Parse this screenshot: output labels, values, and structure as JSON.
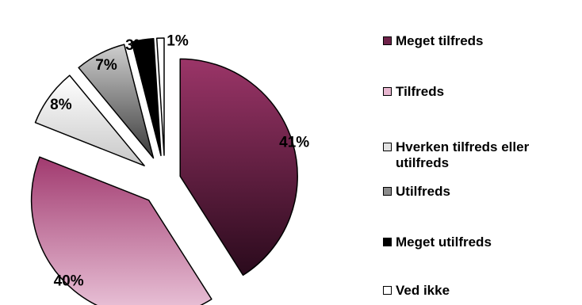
{
  "chart_data": {
    "type": "pie",
    "categories": [
      "Meget tilfreds",
      "Tilfreds",
      "Hverken tilfreds eller utilfreds",
      "Utilfreds",
      "Meget utilfreds",
      "Ved ikke"
    ],
    "values": [
      41,
      40,
      8,
      7,
      3,
      1
    ],
    "value_labels": [
      "41%",
      "40%",
      "8%",
      "7%",
      "3%",
      "1%"
    ],
    "legend_position": "right",
    "exploded": true,
    "colors": {
      "Meget tilfreds": [
        "#9b3568",
        "#2a0a1c"
      ],
      "Tilfreds": [
        "#a13a6f",
        "#ecc8dc"
      ],
      "Hverken tilfreds eller utilfreds": [
        "#ffffff",
        "#c8c8c8"
      ],
      "Utilfreds": [
        "#cfcfcf",
        "#3a3a3a"
      ],
      "Meget utilfreds": [
        "#000000",
        "#000000"
      ],
      "Ved ikke": [
        "#ffffff",
        "#ffffff"
      ]
    },
    "legend_swatch_colors": [
      "#6e2249",
      "#e7b6cf",
      "#e2e2e2",
      "#8c8c8c",
      "#000000",
      "#ffffff"
    ]
  }
}
